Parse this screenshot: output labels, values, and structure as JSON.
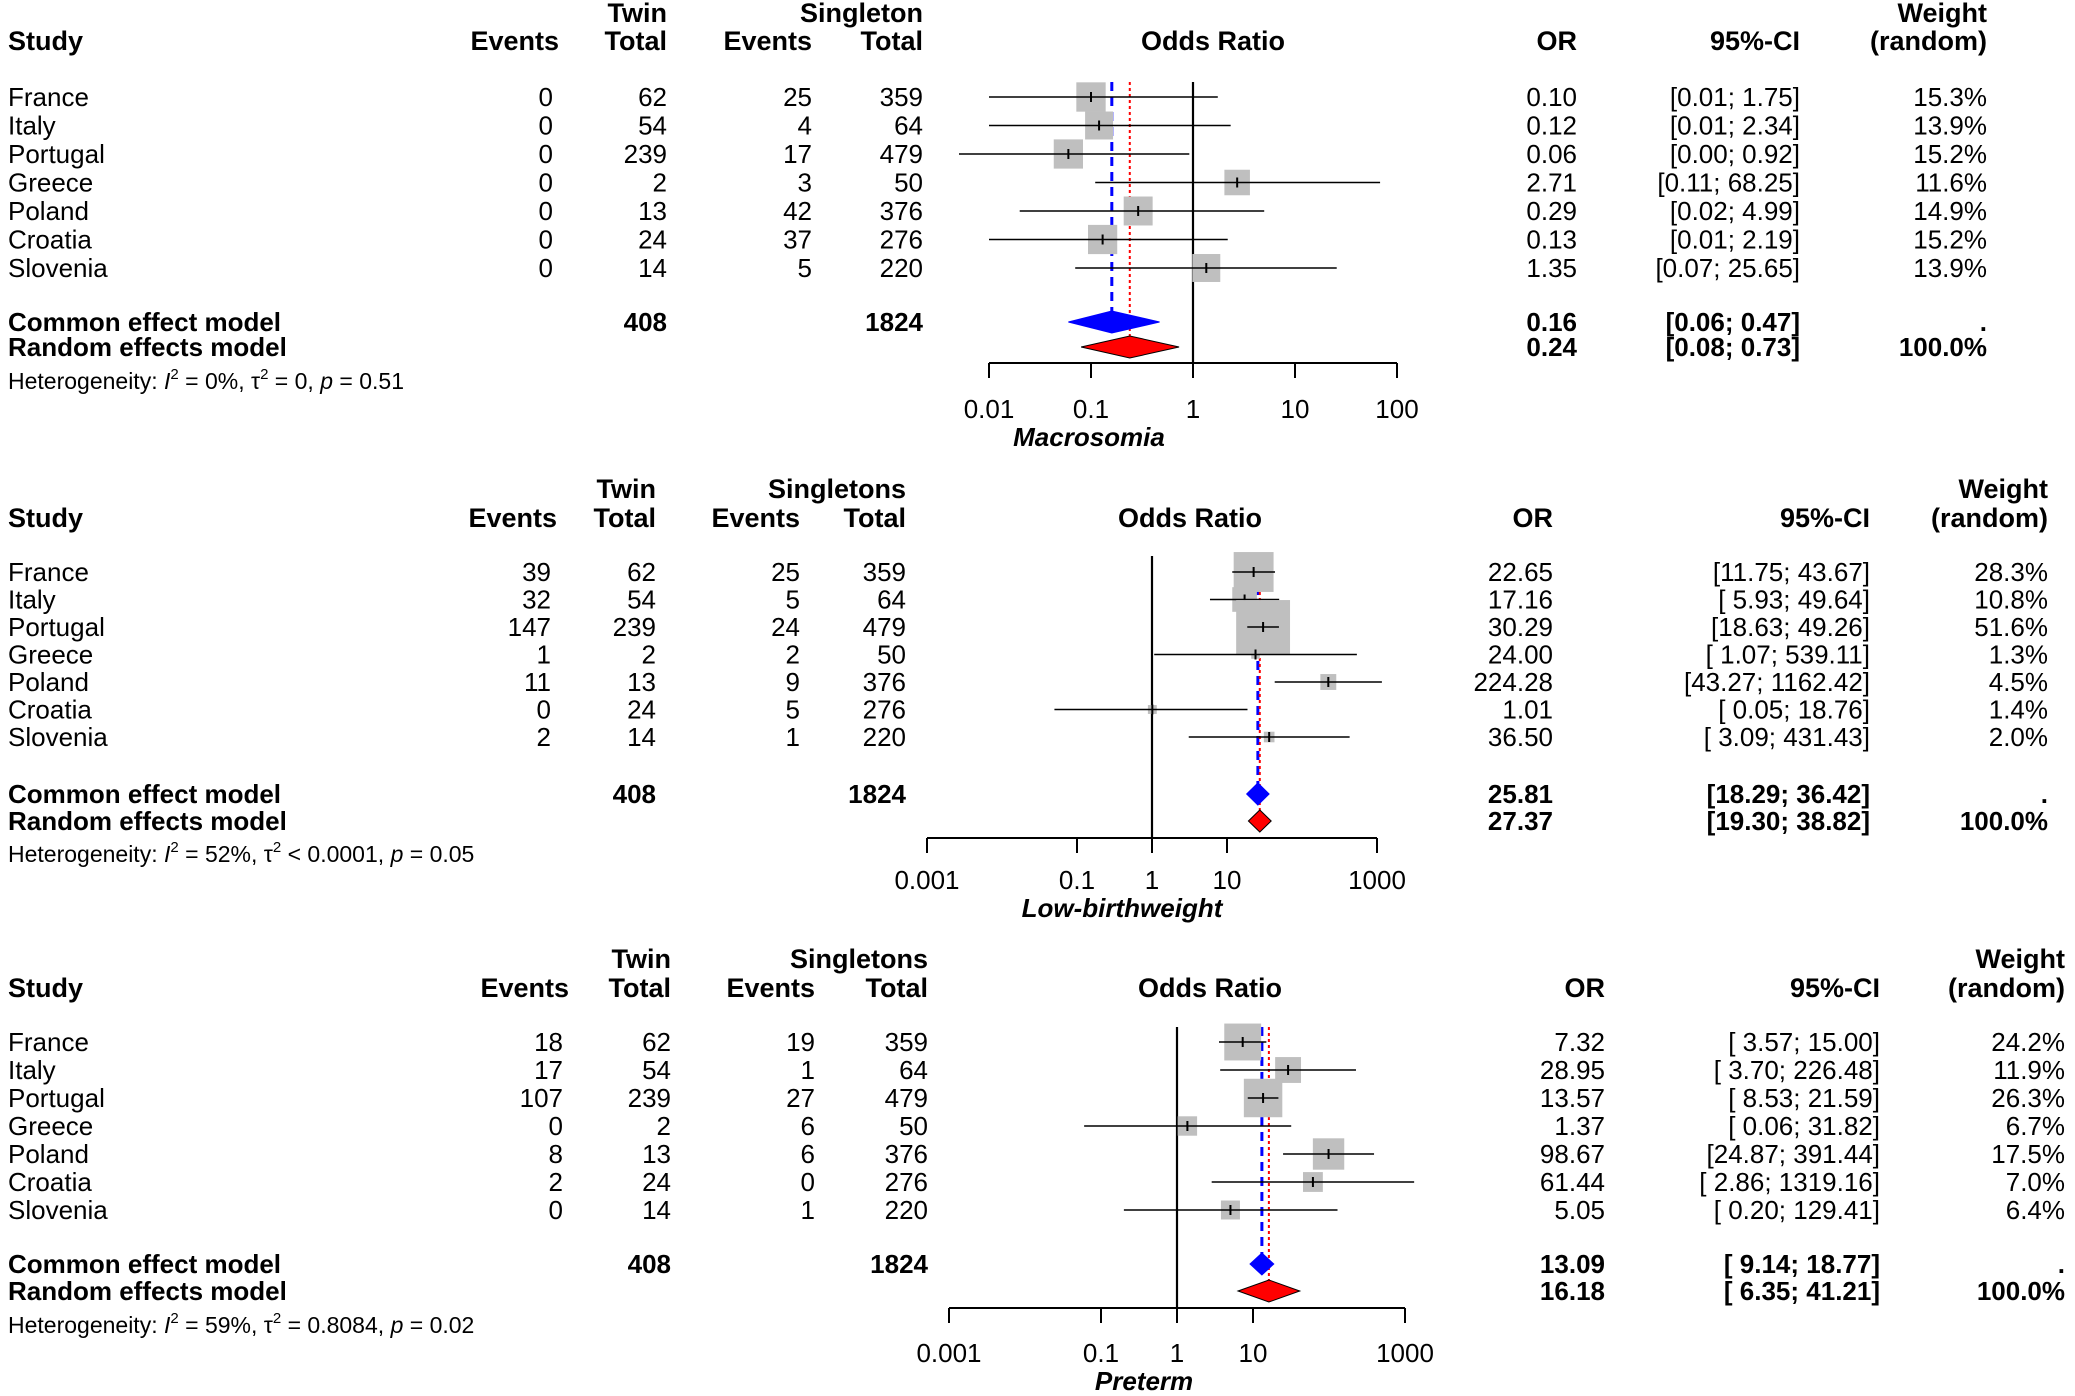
{
  "chart_data": [
    {
      "type": "forest",
      "title": "Macrosomia",
      "xlabel": "Macrosomia",
      "scale": "log",
      "xticks": [
        "0.01",
        "0.1",
        "1",
        "10",
        "100"
      ],
      "xlim": [
        0.01,
        100
      ],
      "headers": {
        "study": "Study",
        "group1": "Twin",
        "group2": "Singleton",
        "events": "Events",
        "total": "Total",
        "plot": "Odds Ratio",
        "or": "OR",
        "ci": "95%-CI",
        "weight_top": "Weight",
        "weight_bottom": "(random)"
      },
      "studies": [
        {
          "name": "France",
          "e1": "0",
          "n1": "62",
          "e2": "25",
          "n2": "359",
          "or": 0.1,
          "lo": 0.01,
          "hi": 1.75,
          "or_text": "0.10",
          "ci_text": "[0.01;  1.75]",
          "weight": "15.3%"
        },
        {
          "name": "Italy",
          "e1": "0",
          "n1": "54",
          "e2": "4",
          "n2": "64",
          "or": 0.12,
          "lo": 0.01,
          "hi": 2.34,
          "or_text": "0.12",
          "ci_text": "[0.01;  2.34]",
          "weight": "13.9%"
        },
        {
          "name": "Portugal",
          "e1": "0",
          "n1": "239",
          "e2": "17",
          "n2": "479",
          "or": 0.06,
          "lo": 0.003,
          "hi": 0.92,
          "or_text": "0.06",
          "ci_text": "[0.00;  0.92]",
          "weight": "15.2%"
        },
        {
          "name": "Greece",
          "e1": "0",
          "n1": "2",
          "e2": "3",
          "n2": "50",
          "or": 2.71,
          "lo": 0.11,
          "hi": 68.25,
          "or_text": "2.71",
          "ci_text": "[0.11; 68.25]",
          "weight": "11.6%"
        },
        {
          "name": "Poland",
          "e1": "0",
          "n1": "13",
          "e2": "42",
          "n2": "376",
          "or": 0.29,
          "lo": 0.02,
          "hi": 4.99,
          "or_text": "0.29",
          "ci_text": "[0.02;  4.99]",
          "weight": "14.9%"
        },
        {
          "name": "Croatia",
          "e1": "0",
          "n1": "24",
          "e2": "37",
          "n2": "276",
          "or": 0.13,
          "lo": 0.01,
          "hi": 2.19,
          "or_text": "0.13",
          "ci_text": "[0.01;  2.19]",
          "weight": "15.2%"
        },
        {
          "name": "Slovenia",
          "e1": "0",
          "n1": "14",
          "e2": "5",
          "n2": "220",
          "or": 1.35,
          "lo": 0.07,
          "hi": 25.65,
          "or_text": "1.35",
          "ci_text": "[0.07; 25.65]",
          "weight": "13.9%"
        }
      ],
      "common": {
        "label": "Common effect model",
        "n1": "408",
        "n2": "1824",
        "or": 0.16,
        "lo": 0.06,
        "hi": 0.47,
        "or_text": "0.16",
        "ci_text": "[0.06;  0.47]",
        "weight": "."
      },
      "random": {
        "label": "Random effects model",
        "or": 0.24,
        "lo": 0.08,
        "hi": 0.73,
        "or_text": "0.24",
        "ci_text": "[0.08;  0.73]",
        "weight": "100.0%"
      },
      "heterogeneity": {
        "prefix": "Heterogeneity: ",
        "I2": "0%",
        "tau2_rel": "=",
        "tau2": "0",
        "p": "0.51"
      }
    },
    {
      "type": "forest",
      "title": "Low-birthweight",
      "xlabel": "Low-birthweight",
      "scale": "log",
      "xticks": [
        "0.001",
        "0.1",
        "1",
        "10",
        "1000"
      ],
      "xlim": [
        0.001,
        1000
      ],
      "headers": {
        "study": "Study",
        "group1": "Twin",
        "group2": "Singletons",
        "events": "Events",
        "total": "Total",
        "plot": "Odds Ratio",
        "or": "OR",
        "ci": "95%-CI",
        "weight_top": "Weight",
        "weight_bottom": "(random)"
      },
      "studies": [
        {
          "name": "France",
          "e1": "39",
          "n1": "62",
          "e2": "25",
          "n2": "359",
          "or": 22.65,
          "lo": 11.75,
          "hi": 43.67,
          "or_text": "22.65",
          "ci_text": "[11.75;  43.67]",
          "weight": "28.3%"
        },
        {
          "name": "Italy",
          "e1": "32",
          "n1": "54",
          "e2": "5",
          "n2": "64",
          "or": 17.16,
          "lo": 5.93,
          "hi": 49.64,
          "or_text": "17.16",
          "ci_text": "[ 5.93;  49.64]",
          "weight": "10.8%"
        },
        {
          "name": "Portugal",
          "e1": "147",
          "n1": "239",
          "e2": "24",
          "n2": "479",
          "or": 30.29,
          "lo": 18.63,
          "hi": 49.26,
          "or_text": "30.29",
          "ci_text": "[18.63;  49.26]",
          "weight": "51.6%"
        },
        {
          "name": "Greece",
          "e1": "1",
          "n1": "2",
          "e2": "2",
          "n2": "50",
          "or": 24.0,
          "lo": 1.07,
          "hi": 539.11,
          "or_text": "24.00",
          "ci_text": "[ 1.07; 539.11]",
          "weight": "1.3%"
        },
        {
          "name": "Poland",
          "e1": "11",
          "n1": "13",
          "e2": "9",
          "n2": "376",
          "or": 224.28,
          "lo": 43.27,
          "hi": 1162.42,
          "or_text": "224.28",
          "ci_text": "[43.27; 1162.42]",
          "weight": "4.5%"
        },
        {
          "name": "Croatia",
          "e1": "0",
          "n1": "24",
          "e2": "5",
          "n2": "276",
          "or": 1.01,
          "lo": 0.05,
          "hi": 18.76,
          "or_text": "1.01",
          "ci_text": "[ 0.05;  18.76]",
          "weight": "1.4%"
        },
        {
          "name": "Slovenia",
          "e1": "2",
          "n1": "14",
          "e2": "1",
          "n2": "220",
          "or": 36.5,
          "lo": 3.09,
          "hi": 431.43,
          "or_text": "36.50",
          "ci_text": "[ 3.09; 431.43]",
          "weight": "2.0%"
        }
      ],
      "common": {
        "label": "Common effect model",
        "n1": "408",
        "n2": "1824",
        "or": 25.81,
        "lo": 18.29,
        "hi": 36.42,
        "or_text": "25.81",
        "ci_text": "[18.29;  36.42]",
        "weight": "."
      },
      "random": {
        "label": "Random effects model",
        "or": 27.37,
        "lo": 19.3,
        "hi": 38.82,
        "or_text": "27.37",
        "ci_text": "[19.30;  38.82]",
        "weight": "100.0%"
      },
      "heterogeneity": {
        "prefix": "Heterogeneity: ",
        "I2": "52%",
        "tau2_rel": "<",
        "tau2": "0.0001",
        "p": "0.05"
      }
    },
    {
      "type": "forest",
      "title": "Preterm",
      "xlabel": "Preterm",
      "scale": "log",
      "xticks": [
        "0.001",
        "0.1",
        "1",
        "10",
        "1000"
      ],
      "xlim": [
        0.001,
        1000
      ],
      "headers": {
        "study": "Study",
        "group1": "Twin",
        "group2": "Singletons",
        "events": "Events",
        "total": "Total",
        "plot": "Odds Ratio",
        "or": "OR",
        "ci": "95%-CI",
        "weight_top": "Weight",
        "weight_bottom": "(random)"
      },
      "studies": [
        {
          "name": "France",
          "e1": "18",
          "n1": "62",
          "e2": "19",
          "n2": "359",
          "or": 7.32,
          "lo": 3.57,
          "hi": 15.0,
          "or_text": "7.32",
          "ci_text": "[ 3.57;   15.00]",
          "weight": "24.2%"
        },
        {
          "name": "Italy",
          "e1": "17",
          "n1": "54",
          "e2": "1",
          "n2": "64",
          "or": 28.95,
          "lo": 3.7,
          "hi": 226.48,
          "or_text": "28.95",
          "ci_text": "[ 3.70;  226.48]",
          "weight": "11.9%"
        },
        {
          "name": "Portugal",
          "e1": "107",
          "n1": "239",
          "e2": "27",
          "n2": "479",
          "or": 13.57,
          "lo": 8.53,
          "hi": 21.59,
          "or_text": "13.57",
          "ci_text": "[ 8.53;   21.59]",
          "weight": "26.3%"
        },
        {
          "name": "Greece",
          "e1": "0",
          "n1": "2",
          "e2": "6",
          "n2": "50",
          "or": 1.37,
          "lo": 0.06,
          "hi": 31.82,
          "or_text": "1.37",
          "ci_text": "[ 0.06;   31.82]",
          "weight": "6.7%"
        },
        {
          "name": "Poland",
          "e1": "8",
          "n1": "13",
          "e2": "6",
          "n2": "376",
          "or": 98.67,
          "lo": 24.87,
          "hi": 391.44,
          "or_text": "98.67",
          "ci_text": "[24.87;  391.44]",
          "weight": "17.5%"
        },
        {
          "name": "Croatia",
          "e1": "2",
          "n1": "24",
          "e2": "0",
          "n2": "276",
          "or": 61.44,
          "lo": 2.86,
          "hi": 1319.16,
          "or_text": "61.44",
          "ci_text": "[ 2.86; 1319.16]",
          "weight": "7.0%"
        },
        {
          "name": "Slovenia",
          "e1": "0",
          "n1": "14",
          "e2": "1",
          "n2": "220",
          "or": 5.05,
          "lo": 0.2,
          "hi": 129.41,
          "or_text": "5.05",
          "ci_text": "[ 0.20;  129.41]",
          "weight": "6.4%"
        }
      ],
      "common": {
        "label": "Common effect model",
        "n1": "408",
        "n2": "1824",
        "or": 13.09,
        "lo": 9.14,
        "hi": 18.77,
        "or_text": "13.09",
        "ci_text": "[ 9.14;   18.77]",
        "weight": "."
      },
      "random": {
        "label": "Random effects model",
        "or": 16.18,
        "lo": 6.35,
        "hi": 41.21,
        "or_text": "16.18",
        "ci_text": "[ 6.35;   41.21]",
        "weight": "100.0%"
      },
      "heterogeneity": {
        "prefix": "Heterogeneity: ",
        "I2": "59%",
        "tau2_rel": "=",
        "tau2": "0.8084",
        "p": "0.02"
      }
    }
  ],
  "colors": {
    "common": "#0000ff",
    "random": "#ff0000",
    "square": "#bfbfbf",
    "line": "#000000"
  }
}
